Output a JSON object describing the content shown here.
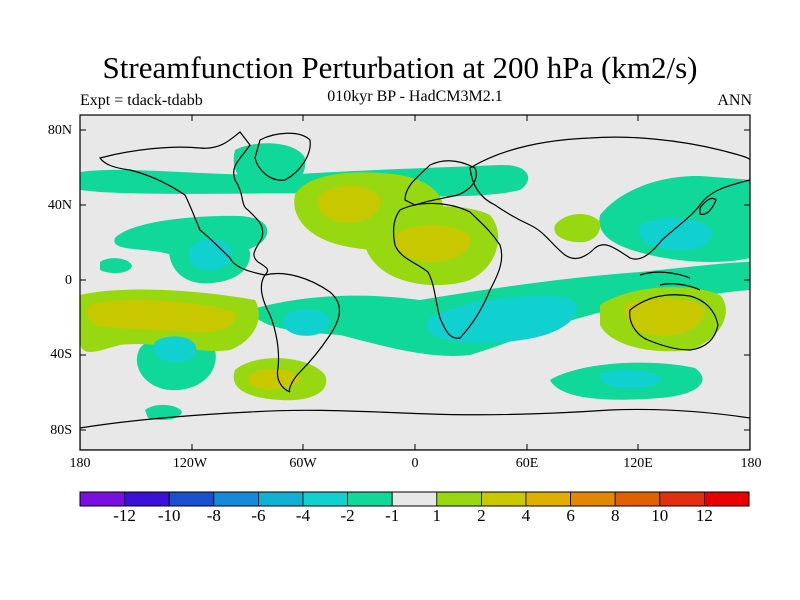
{
  "header": {
    "title": "Streamfunction Perturbation at 200 hPa (km2/s)",
    "subtitle": "010kyr BP - HadCM3M2.1",
    "left": "Expt = tdack-tdabb",
    "right": "ANN"
  },
  "axes": {
    "lat_labels": [
      "80N",
      "40N",
      "0",
      "40S",
      "80S"
    ],
    "lon_labels": [
      "180",
      "120W",
      "60W",
      "0",
      "60E",
      "120E",
      "180"
    ]
  },
  "colorbar": {
    "labels": [
      "-12",
      "-10",
      "-8",
      "-6",
      "-4",
      "-2",
      "-1",
      "1",
      "2",
      "4",
      "6",
      "8",
      "10",
      "12"
    ],
    "colors": [
      "#7a10e0",
      "#3a10d8",
      "#1a50d0",
      "#1888d8",
      "#10b0d0",
      "#10d0d0",
      "#10d898",
      "#e8e8e8",
      "#98d810",
      "#c8c800",
      "#e0b000",
      "#e08800",
      "#e06000",
      "#e03010",
      "#e80000"
    ]
  },
  "map_colors": {
    "background": "#e8e8e8",
    "green": "#10d898",
    "cyan": "#10d0d0",
    "lime": "#98d810",
    "olive": "#c8c800"
  }
}
